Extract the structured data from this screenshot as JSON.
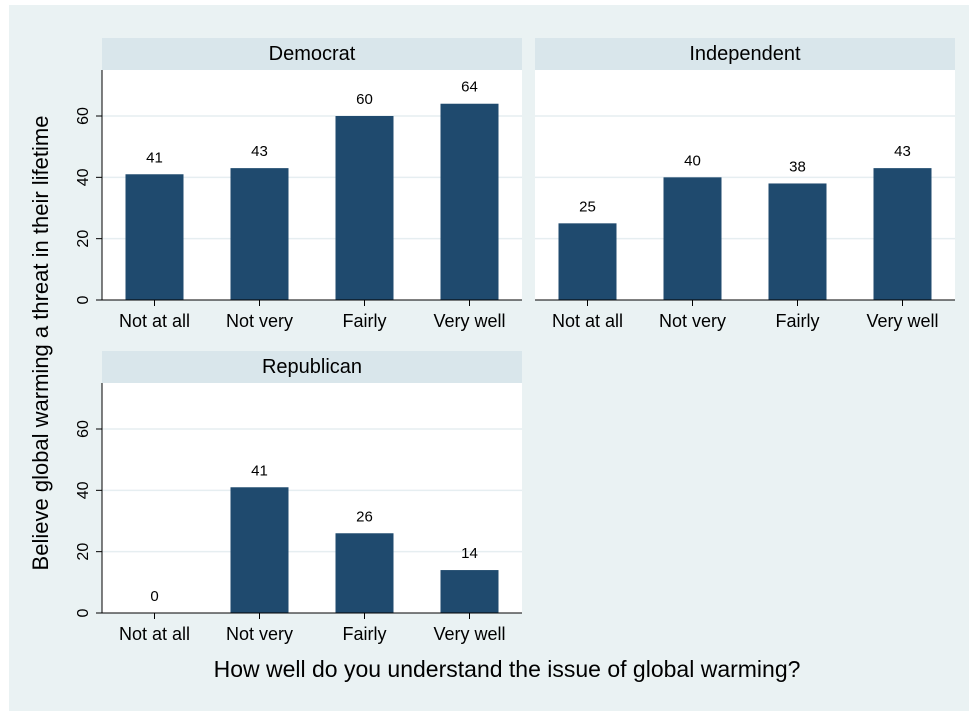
{
  "colors": {
    "outer_background": "#ffffff",
    "figure_background": "#eaf2f3",
    "plot_background": "#ffffff",
    "panel_header": "#d9e6eb",
    "bar": "#1f4a6e",
    "gridline": "#e6eef1",
    "axis": "#000000"
  },
  "chart_data": {
    "type": "bar",
    "ylabel": "Believe global warming a threat in their lifetime",
    "xlabel": "How well do you understand the issue of global warming?",
    "ylim": [
      0,
      75
    ],
    "yticks": [
      0,
      20,
      40,
      60
    ],
    "grid": true,
    "categories": [
      "Not at all",
      "Not very",
      "Fairly",
      "Very well"
    ],
    "panels": [
      {
        "name": "Democrat",
        "values": [
          41,
          43,
          60,
          64
        ],
        "labels": [
          "41",
          "43",
          "60",
          "64"
        ]
      },
      {
        "name": "Independent",
        "values": [
          25,
          40,
          38,
          43
        ],
        "labels": [
          "25",
          "40",
          "38",
          "43"
        ]
      },
      {
        "name": "Republican",
        "values": [
          0,
          41,
          26,
          14
        ],
        "labels": [
          "0",
          "41",
          "26",
          "14"
        ]
      }
    ]
  }
}
